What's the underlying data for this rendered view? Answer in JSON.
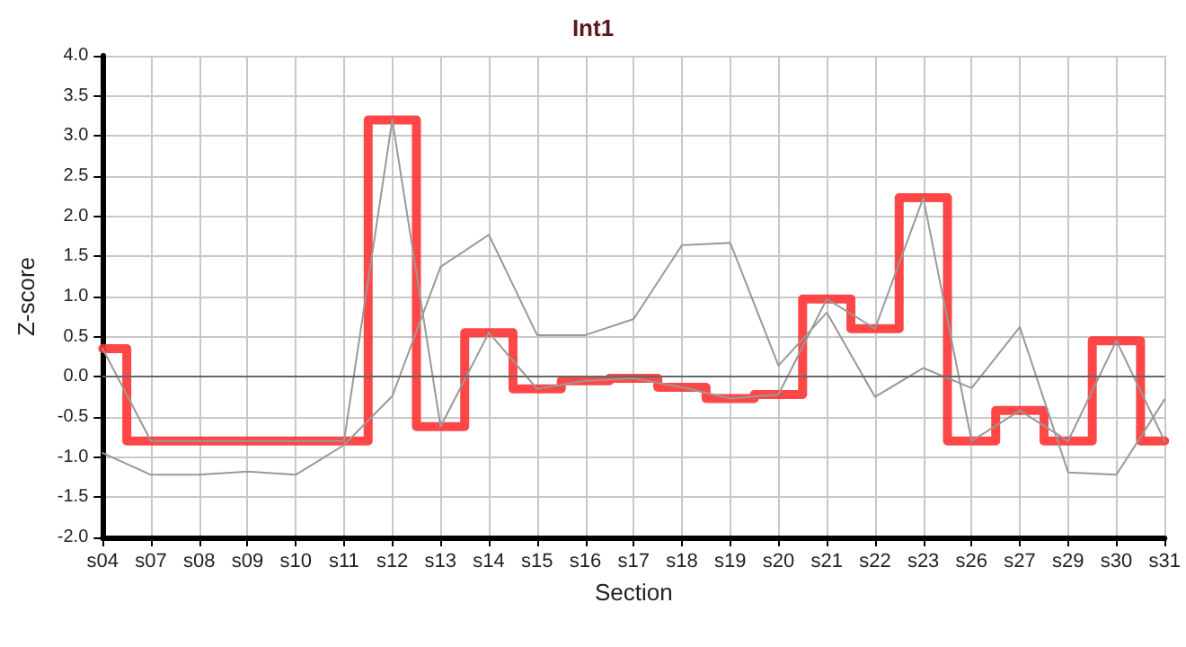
{
  "chart_data": {
    "type": "line",
    "title": "Int1",
    "xlabel": "Section",
    "ylabel": "Z-score",
    "categories": [
      "s04",
      "s07",
      "s08",
      "s09",
      "s10",
      "s11",
      "s12",
      "s13",
      "s14",
      "s15",
      "s16",
      "s17",
      "s18",
      "s19",
      "s20",
      "s21",
      "s22",
      "s23",
      "s26",
      "s27",
      "s29",
      "s30",
      "s31"
    ],
    "series": [
      {
        "type": "step",
        "color": "#ff3333",
        "values": [
          0.35,
          -0.8,
          -0.8,
          -0.8,
          -0.8,
          -0.8,
          3.2,
          -0.62,
          0.55,
          -0.15,
          -0.05,
          -0.02,
          -0.13,
          -0.27,
          -0.22,
          0.97,
          0.6,
          2.23,
          -0.8,
          -0.42,
          -0.8,
          0.45,
          -0.8
        ]
      },
      {
        "color": "#999999",
        "values": [
          0.35,
          -0.8,
          -0.8,
          -0.8,
          -0.8,
          -0.8,
          3.2,
          -0.62,
          0.55,
          -0.15,
          -0.05,
          -0.02,
          -0.13,
          -0.27,
          -0.22,
          0.97,
          0.6,
          2.23,
          -0.8,
          -0.42,
          -0.8,
          0.45,
          -0.8
        ]
      },
      {
        "color": "#999999",
        "values": [
          -0.95,
          -1.22,
          -1.22,
          -1.18,
          -1.22,
          -0.85,
          -0.24,
          1.37,
          1.77,
          0.52,
          0.52,
          0.72,
          1.64,
          1.67,
          0.14,
          0.8,
          -0.25,
          0.11,
          -0.14,
          0.62,
          -1.19,
          -1.22,
          -0.28
        ]
      }
    ],
    "ylim": [
      -2,
      4
    ],
    "yticks": [
      {
        "value": -2,
        "label": "-2.0"
      },
      {
        "value": -1.5,
        "label": "-1.5"
      },
      {
        "value": -1,
        "label": "-1.0"
      },
      {
        "value": -0.5,
        "label": "-0.5"
      },
      {
        "value": 0,
        "label": "0.0"
      },
      {
        "value": 0.5,
        "label": "0.5"
      },
      {
        "value": 1,
        "label": "1.0"
      },
      {
        "value": 1.5,
        "label": "1.5"
      },
      {
        "value": 2,
        "label": "2.0"
      },
      {
        "value": 2.5,
        "label": "2.5"
      },
      {
        "value": 3,
        "label": "3.0"
      },
      {
        "value": 3.5,
        "label": "3.5"
      },
      {
        "value": 4,
        "label": "4.0"
      }
    ],
    "ref_lines": [
      {
        "axis": "y",
        "value": 0,
        "color": "#666666"
      }
    ],
    "grid": true,
    "marker": "none",
    "line_style": "solid"
  }
}
